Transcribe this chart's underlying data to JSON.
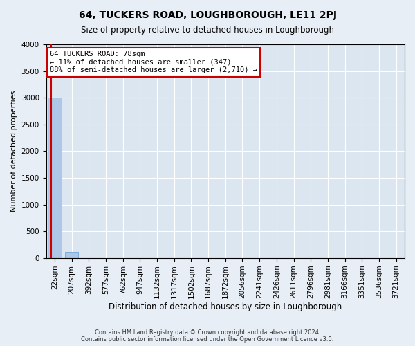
{
  "title": "64, TUCKERS ROAD, LOUGHBOROUGH, LE11 2PJ",
  "subtitle": "Size of property relative to detached houses in Loughborough",
  "xlabel": "Distribution of detached houses by size in Loughborough",
  "ylabel": "Number of detached properties",
  "bar_color": "#aec6e8",
  "bar_edge_color": "#5a9fd4",
  "bins": [
    "22sqm",
    "207sqm",
    "392sqm",
    "577sqm",
    "762sqm",
    "947sqm",
    "1132sqm",
    "1317sqm",
    "1502sqm",
    "1687sqm",
    "1872sqm",
    "2056sqm",
    "2241sqm",
    "2426sqm",
    "2611sqm",
    "2796sqm",
    "2981sqm",
    "3166sqm",
    "3351sqm",
    "3536sqm",
    "3721sqm"
  ],
  "values": [
    3000,
    110,
    0,
    0,
    0,
    0,
    0,
    0,
    0,
    0,
    0,
    0,
    0,
    0,
    0,
    0,
    0,
    0,
    0,
    0,
    0
  ],
  "ylim": [
    0,
    4000
  ],
  "yticks": [
    0,
    500,
    1000,
    1500,
    2000,
    2500,
    3000,
    3500,
    4000
  ],
  "property_label": "64 TUCKERS ROAD: 78sqm",
  "annotation_line1": "← 11% of detached houses are smaller (347)",
  "annotation_line2": "88% of semi-detached houses are larger (2,710) →",
  "annotation_box_color": "#ffffff",
  "annotation_box_edge_color": "#cc0000",
  "footer_line1": "Contains HM Land Registry data © Crown copyright and database right 2024.",
  "footer_line2": "Contains public sector information licensed under the Open Government Licence v3.0.",
  "bg_color": "#e8eef5",
  "plot_bg_color": "#dce6f0",
  "grid_color": "#ffffff",
  "red_line_color": "#cc0000"
}
